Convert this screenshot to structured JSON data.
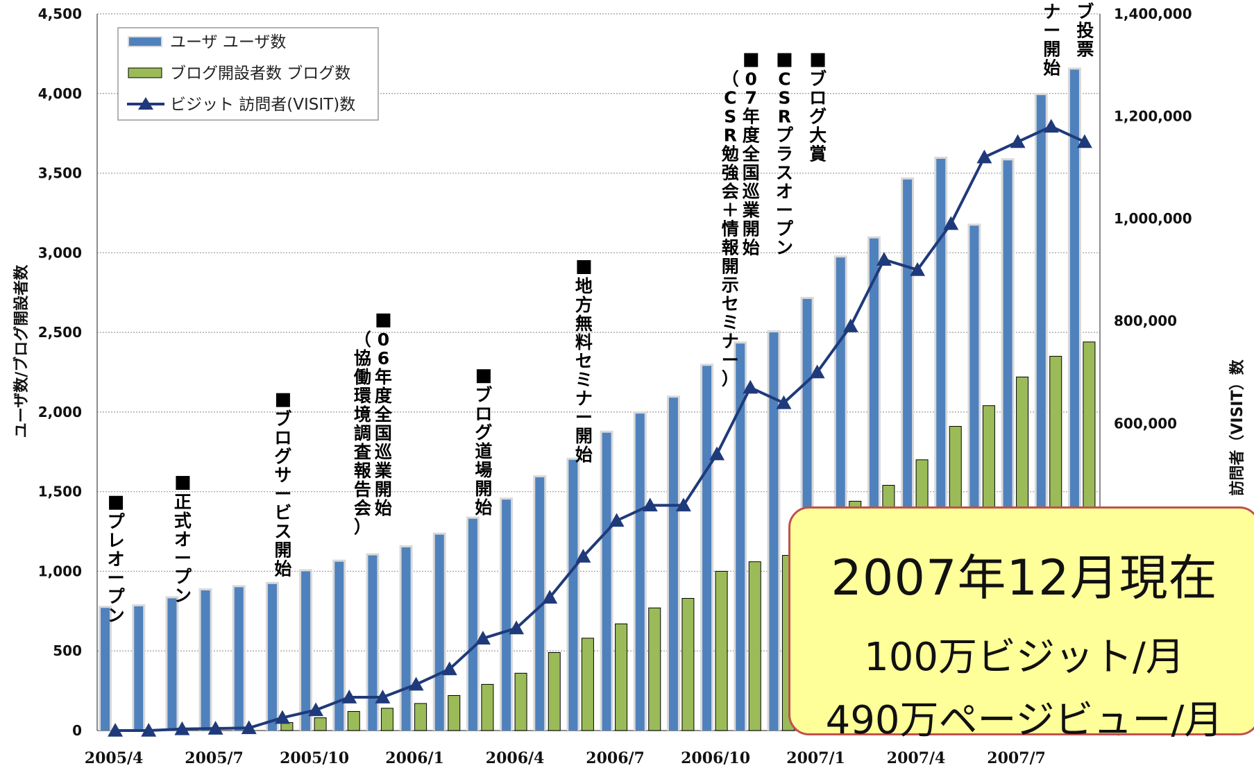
{
  "chart_data": {
    "type": "bar",
    "categories": [
      "2005/4",
      "",
      "",
      "2005/7",
      "",
      "",
      "2005/10",
      "",
      "",
      "2006/1",
      "",
      "",
      "2006/4",
      "",
      "",
      "2006/7",
      "",
      "",
      "2006/10",
      "",
      "",
      "2007/1",
      "",
      "",
      "2007/4",
      "",
      "",
      "2007/7",
      "",
      ""
    ],
    "series": [
      {
        "name": "ユーザ ユーザ数",
        "type": "bar",
        "axis": "left",
        "color": "#4f81bd",
        "values": [
          770,
          780,
          830,
          880,
          900,
          920,
          1000,
          1060,
          1100,
          1150,
          1230,
          1330,
          1450,
          1590,
          1700,
          1870,
          1990,
          2090,
          2290,
          2430,
          2500,
          2710,
          2970,
          3090,
          3460,
          3590,
          3170,
          3580,
          3990,
          4150
        ]
      },
      {
        "name": "ブログ開設者数 ブログ数",
        "type": "bar",
        "axis": "left",
        "color": "#9bbb59",
        "values": [
          0,
          0,
          0,
          0,
          0,
          50,
          80,
          120,
          140,
          170,
          220,
          290,
          360,
          490,
          580,
          670,
          770,
          830,
          1000,
          1060,
          1100,
          1260,
          1440,
          1540,
          1700,
          1910,
          2040,
          2220,
          2350,
          2440
        ]
      },
      {
        "name": "ビジット 訪問者(VISIT)数",
        "type": "line",
        "axis": "right",
        "color": "#1f3a7a",
        "values": [
          0,
          0,
          3000,
          4000,
          5000,
          25000,
          40000,
          65000,
          65000,
          90000,
          120000,
          180000,
          200000,
          260000,
          340000,
          410000,
          440000,
          440000,
          540000,
          670000,
          640000,
          700000,
          790000,
          920000,
          900000,
          990000,
          1120000,
          1150000,
          1180000,
          1150000
        ]
      }
    ],
    "ylim": [
      0,
      4500
    ],
    "y2lim": [
      0,
      1400000
    ],
    "yticks": [
      "0",
      "500",
      "1,000",
      "1,500",
      "2,000",
      "2,500",
      "3,000",
      "3,500",
      "4,000",
      "4,500"
    ],
    "y2ticks": [
      "0",
      "200,000",
      "400,000",
      "600,000",
      "800,000",
      "1,000,000",
      "1,200,000",
      "1,400,000"
    ],
    "ylabel": "ユーザ数/ブログ開設者数",
    "y2label": "訪問者（VISIT）数",
    "xlabel": "",
    "legend": {
      "position": "top-left",
      "items": [
        "ユーザ ユーザ数",
        "ブログ開設者数 ブログ数",
        "ビジット 訪問者(VISIT)数"
      ]
    },
    "grid": true,
    "annotations": [
      {
        "index": 0,
        "level": 1430,
        "lines": [
          "プレオープン"
        ]
      },
      {
        "index": 2,
        "level": 1555,
        "lines": [
          "正式オープン"
        ]
      },
      {
        "index": 5,
        "level": 2075,
        "lines": [
          "ブログサービス開始"
        ]
      },
      {
        "index": 8,
        "level": 2575,
        "lines": [
          "06年度全国巡業開始",
          "（協働環境調査報告会）"
        ]
      },
      {
        "index": 11,
        "level": 2225,
        "lines": [
          "ブログ道場開始"
        ]
      },
      {
        "index": 14,
        "level": 2910,
        "lines": [
          "地方無料セミナー開始"
        ]
      },
      {
        "index": 19,
        "level": 4210,
        "lines": [
          "07年度全国巡業開始",
          "（CSR勉強会＋情報開示セミナー）"
        ]
      },
      {
        "index": 20,
        "level": 4210,
        "lines": [
          "CSRプラスオープン"
        ]
      },
      {
        "index": 21,
        "level": 4210,
        "lines": [
          "ブログ大賞"
        ]
      },
      {
        "index": 28,
        "level": 4750,
        "lines": [
          "ミナー開始"
        ]
      },
      {
        "index": 29,
        "level": 4750,
        "lines": [
          "ェブ投票"
        ]
      }
    ]
  },
  "callout": {
    "title": "2007年12月現在",
    "line1": "100万ビジット/月",
    "line2": "490万ページビュー/月"
  }
}
